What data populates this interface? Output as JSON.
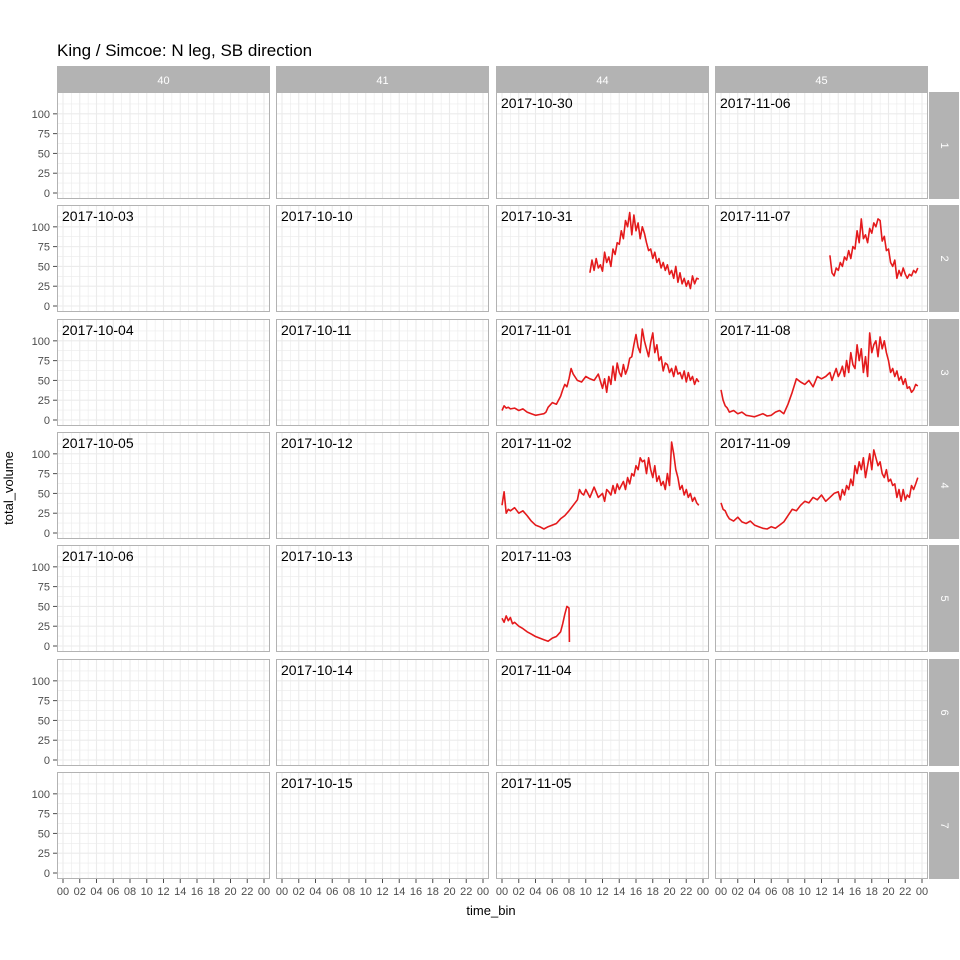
{
  "chart_data": {
    "type": "line",
    "title": "King / Simcoe: N leg, SB direction",
    "xlabel": "time_bin",
    "ylabel": "total_volume",
    "ylim": [
      0,
      120
    ],
    "yticks": [
      0,
      25,
      50,
      75,
      100
    ],
    "xticks": [
      "00",
      "02",
      "04",
      "06",
      "08",
      "10",
      "12",
      "14",
      "16",
      "18",
      "20",
      "22",
      "00"
    ],
    "xlim_hours": [
      0,
      24
    ],
    "grid": true,
    "line_color": "#e41a1c",
    "strip_color": "#b3b3b3",
    "col_facets": [
      "40",
      "41",
      "44",
      "45"
    ],
    "row_facets": [
      "1",
      "2",
      "3",
      "4",
      "5",
      "6",
      "7"
    ],
    "panels": [
      {
        "col": "44",
        "row": "1",
        "date": "2017-10-30"
      },
      {
        "col": "45",
        "row": "1",
        "date": "2017-11-06"
      },
      {
        "col": "40",
        "row": "2",
        "date": "2017-10-03"
      },
      {
        "col": "41",
        "row": "2",
        "date": "2017-10-10"
      },
      {
        "col": "44",
        "row": "2",
        "date": "2017-10-31",
        "x": [
          10.5,
          10.75,
          11,
          11.25,
          11.5,
          11.75,
          12,
          12.25,
          12.5,
          12.75,
          13,
          13.25,
          13.5,
          13.75,
          14,
          14.25,
          14.5,
          14.75,
          15,
          15.25,
          15.5,
          15.75,
          16,
          16.25,
          16.5,
          16.75,
          17,
          17.25,
          17.5,
          17.75,
          18,
          18.25,
          18.5,
          18.75,
          19,
          19.25,
          19.5,
          19.75,
          20,
          20.25,
          20.5,
          20.75,
          21,
          21.25,
          21.5,
          21.75,
          22,
          22.25,
          22.5,
          22.75,
          23,
          23.25,
          23.5
        ],
        "y": [
          42,
          58,
          45,
          60,
          48,
          52,
          44,
          68,
          55,
          62,
          50,
          72,
          65,
          80,
          78,
          95,
          85,
          108,
          100,
          118,
          90,
          115,
          95,
          105,
          85,
          100,
          92,
          80,
          70,
          72,
          60,
          68,
          55,
          60,
          48,
          55,
          45,
          52,
          40,
          45,
          35,
          50,
          30,
          42,
          28,
          35,
          25,
          32,
          22,
          38,
          28,
          35,
          34
        ]
      },
      {
        "col": "45",
        "row": "2",
        "date": "2017-11-07",
        "x": [
          13,
          13.25,
          13.5,
          13.75,
          14,
          14.25,
          14.5,
          14.75,
          15,
          15.25,
          15.5,
          15.75,
          16,
          16.25,
          16.5,
          16.75,
          17,
          17.25,
          17.5,
          17.75,
          18,
          18.25,
          18.5,
          18.75,
          19,
          19.25,
          19.5,
          19.75,
          20,
          20.25,
          20.5,
          20.75,
          21,
          21.25,
          21.5,
          21.75,
          22,
          22.25,
          22.5,
          22.75,
          23,
          23.25,
          23.5
        ],
        "y": [
          64,
          42,
          38,
          48,
          45,
          55,
          50,
          62,
          58,
          70,
          60,
          75,
          72,
          95,
          80,
          110,
          85,
          90,
          80,
          98,
          92,
          105,
          100,
          110,
          108,
          82,
          88,
          70,
          72,
          55,
          50,
          58,
          35,
          45,
          38,
          48,
          40,
          35,
          40,
          38,
          45,
          42,
          48
        ]
      },
      {
        "col": "40",
        "row": "3",
        "date": "2017-10-04"
      },
      {
        "col": "41",
        "row": "3",
        "date": "2017-10-11"
      },
      {
        "col": "44",
        "row": "3",
        "date": "2017-11-01",
        "x": [
          0,
          0.25,
          0.5,
          0.75,
          1,
          1.5,
          2,
          2.5,
          3,
          3.5,
          4,
          4.5,
          5,
          5.25,
          5.5,
          6,
          6.5,
          7,
          7.25,
          7.5,
          7.75,
          8,
          8.25,
          8.5,
          9,
          9.5,
          10,
          10.5,
          11,
          11.5,
          12,
          12.25,
          12.5,
          12.75,
          13,
          13.25,
          13.5,
          13.75,
          14,
          14.25,
          14.5,
          14.75,
          15,
          15.25,
          15.5,
          15.75,
          16,
          16.25,
          16.5,
          16.75,
          17,
          17.25,
          17.5,
          17.75,
          18,
          18.25,
          18.5,
          18.75,
          19,
          19.25,
          19.5,
          19.75,
          20,
          20.25,
          20.5,
          20.75,
          21,
          21.25,
          21.5,
          21.75,
          22,
          22.25,
          22.5,
          22.75,
          23,
          23.25,
          23.5
        ],
        "y": [
          12,
          18,
          15,
          16,
          14,
          15,
          12,
          14,
          10,
          8,
          6,
          7,
          8,
          10,
          16,
          22,
          20,
          30,
          38,
          45,
          42,
          52,
          65,
          58,
          50,
          48,
          55,
          52,
          50,
          58,
          40,
          52,
          35,
          55,
          45,
          68,
          50,
          72,
          60,
          55,
          70,
          58,
          65,
          78,
          80,
          95,
          108,
          92,
          85,
          115,
          100,
          90,
          80,
          98,
          110,
          85,
          95,
          75,
          80,
          62,
          72,
          70,
          60,
          65,
          55,
          68,
          58,
          60,
          52,
          62,
          48,
          60,
          50,
          55,
          45,
          52,
          48
        ]
      },
      {
        "col": "45",
        "row": "3",
        "date": "2017-11-08",
        "x": [
          0,
          0.25,
          0.5,
          0.75,
          1,
          1.5,
          2,
          2.5,
          3,
          3.5,
          4,
          4.5,
          5,
          5.5,
          6,
          6.5,
          7,
          7.5,
          8,
          8.5,
          9,
          9.5,
          10,
          10.5,
          11,
          11.5,
          12,
          12.5,
          13,
          13.25,
          13.5,
          13.75,
          14,
          14.25,
          14.5,
          14.75,
          15,
          15.25,
          15.5,
          15.75,
          16,
          16.25,
          16.5,
          16.75,
          17,
          17.25,
          17.5,
          17.75,
          18,
          18.25,
          18.5,
          18.75,
          19,
          19.25,
          19.5,
          19.75,
          20,
          20.25,
          20.5,
          20.75,
          21,
          21.25,
          21.5,
          21.75,
          22,
          22.25,
          22.5,
          22.75,
          23,
          23.25,
          23.5
        ],
        "y": [
          38,
          25,
          18,
          15,
          10,
          12,
          8,
          10,
          6,
          5,
          4,
          6,
          8,
          5,
          6,
          10,
          12,
          8,
          20,
          35,
          52,
          48,
          45,
          50,
          42,
          55,
          52,
          55,
          60,
          50,
          58,
          65,
          55,
          60,
          68,
          55,
          75,
          60,
          85,
          70,
          65,
          95,
          75,
          90,
          60,
          80,
          55,
          110,
          85,
          95,
          100,
          80,
          105,
          90,
          100,
          85,
          75,
          60,
          65,
          55,
          62,
          50,
          55,
          45,
          52,
          40,
          42,
          35,
          38,
          45,
          43
        ]
      },
      {
        "col": "40",
        "row": "4",
        "date": "2017-10-05"
      },
      {
        "col": "41",
        "row": "4",
        "date": "2017-10-12"
      },
      {
        "col": "44",
        "row": "4",
        "date": "2017-11-02",
        "x": [
          0,
          0.25,
          0.5,
          0.75,
          1,
          1.5,
          2,
          2.5,
          3,
          3.5,
          4,
          4.5,
          5,
          5.5,
          6,
          6.5,
          7,
          7.5,
          8,
          8.5,
          9,
          9.25,
          9.5,
          9.75,
          10,
          10.5,
          11,
          11.5,
          12,
          12.25,
          12.5,
          12.75,
          13,
          13.25,
          13.5,
          13.75,
          14,
          14.25,
          14.5,
          14.75,
          15,
          15.25,
          15.5,
          15.75,
          16,
          16.25,
          16.5,
          16.75,
          17,
          17.25,
          17.5,
          17.75,
          18,
          18.25,
          18.5,
          18.75,
          19,
          19.25,
          19.5,
          19.75,
          20,
          20.25,
          20.5,
          20.75,
          21,
          21.25,
          21.5,
          21.75,
          22,
          22.25,
          22.5,
          22.75,
          23,
          23.25,
          23.5
        ],
        "y": [
          35,
          52,
          25,
          30,
          28,
          32,
          25,
          28,
          22,
          15,
          10,
          8,
          5,
          8,
          10,
          12,
          18,
          22,
          28,
          35,
          42,
          55,
          50,
          48,
          55,
          45,
          58,
          45,
          50,
          40,
          55,
          52,
          48,
          60,
          50,
          62,
          55,
          60,
          65,
          55,
          70,
          62,
          75,
          72,
          85,
          80,
          95,
          90,
          92,
          75,
          95,
          80,
          70,
          85,
          65,
          72,
          60,
          65,
          55,
          75,
          60,
          115,
          100,
          80,
          70,
          55,
          60,
          48,
          55,
          45,
          50,
          40,
          45,
          38,
          35
        ]
      },
      {
        "col": "45",
        "row": "4",
        "date": "2017-11-09",
        "x": [
          0,
          0.25,
          0.5,
          0.75,
          1,
          1.5,
          2,
          2.5,
          3,
          3.5,
          4,
          4.5,
          5,
          5.5,
          6,
          6.5,
          7,
          7.5,
          8,
          8.5,
          9,
          9.5,
          10,
          10.5,
          11,
          11.5,
          12,
          12.5,
          13,
          13.5,
          14,
          14.25,
          14.5,
          14.75,
          15,
          15.25,
          15.5,
          15.75,
          16,
          16.25,
          16.5,
          16.75,
          17,
          17.25,
          17.5,
          17.75,
          18,
          18.25,
          18.5,
          18.75,
          19,
          19.25,
          19.5,
          19.75,
          20,
          20.25,
          20.5,
          20.75,
          21,
          21.25,
          21.5,
          21.75,
          22,
          22.25,
          22.5,
          22.75,
          23,
          23.25,
          23.5
        ],
        "y": [
          38,
          30,
          28,
          22,
          18,
          15,
          20,
          14,
          12,
          15,
          10,
          8,
          6,
          5,
          8,
          6,
          10,
          14,
          22,
          30,
          28,
          35,
          40,
          38,
          45,
          42,
          48,
          40,
          45,
          50,
          52,
          42,
          55,
          48,
          60,
          55,
          68,
          60,
          85,
          75,
          90,
          80,
          95,
          70,
          85,
          100,
          80,
          105,
          95,
          85,
          90,
          75,
          70,
          80,
          65,
          68,
          60,
          62,
          45,
          55,
          40,
          55,
          42,
          48,
          45,
          60,
          55,
          62,
          70
        ]
      },
      {
        "col": "40",
        "row": "5",
        "date": "2017-10-06"
      },
      {
        "col": "41",
        "row": "5",
        "date": "2017-10-13"
      },
      {
        "col": "44",
        "row": "5",
        "date": "2017-11-03",
        "x": [
          0,
          0.25,
          0.5,
          0.75,
          1,
          1.25,
          1.5,
          2,
          2.5,
          3,
          3.5,
          4,
          4.5,
          5,
          5.5,
          6,
          6.5,
          7,
          7.25,
          7.5,
          7.75,
          8,
          8.05
        ],
        "y": [
          35,
          30,
          38,
          32,
          36,
          28,
          30,
          25,
          22,
          18,
          15,
          12,
          10,
          8,
          6,
          10,
          12,
          18,
          28,
          40,
          50,
          48,
          5
        ]
      },
      {
        "col": "41",
        "row": "6",
        "date": "2017-10-14"
      },
      {
        "col": "44",
        "row": "6",
        "date": "2017-11-04"
      },
      {
        "col": "41",
        "row": "7",
        "date": "2017-10-15"
      },
      {
        "col": "44",
        "row": "7",
        "date": "2017-11-05"
      }
    ]
  }
}
